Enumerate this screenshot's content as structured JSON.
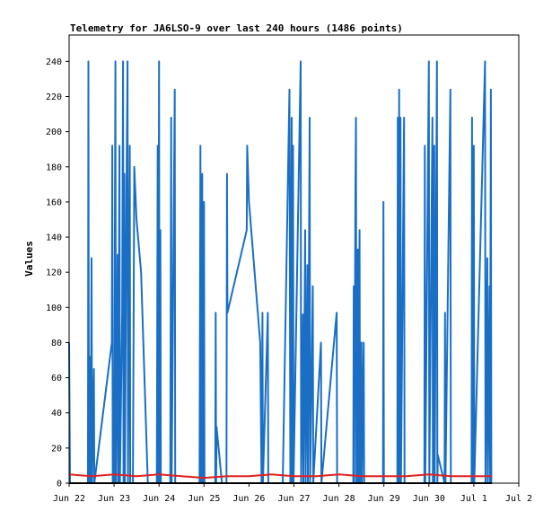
{
  "chart_data": {
    "type": "line",
    "title": "Telemetry for JA6LSO-9 over last 240 hours (1486 points)",
    "xlabel": "",
    "ylabel": "Values",
    "ylim": [
      0,
      255
    ],
    "yticks": [
      0,
      20,
      40,
      60,
      80,
      100,
      120,
      140,
      160,
      180,
      200,
      220,
      240
    ],
    "x_range_days": [
      0,
      10
    ],
    "x_tick_labels": [
      "Jun 22",
      "Jun 23",
      "Jun 24",
      "Jun 25",
      "Jun 26",
      "Jun 27",
      "Jun 28",
      "Jun 29",
      "Jun 30",
      "Jul 1",
      "Jul 2"
    ],
    "grid": false,
    "legend": "none",
    "series": [
      {
        "color": "#1a6fc4",
        "points": [
          [
            0.0,
            80
          ],
          [
            0.02,
            0
          ],
          [
            0.42,
            0
          ],
          [
            0.43,
            240
          ],
          [
            0.44,
            0
          ],
          [
            0.47,
            72
          ],
          [
            0.48,
            0
          ],
          [
            0.5,
            128
          ],
          [
            0.51,
            0
          ],
          [
            0.55,
            65
          ],
          [
            0.56,
            0
          ],
          [
            0.95,
            80
          ],
          [
            0.96,
            192
          ],
          [
            0.97,
            0
          ],
          [
            1.0,
            0
          ],
          [
            1.03,
            240
          ],
          [
            1.04,
            0
          ],
          [
            1.08,
            130
          ],
          [
            1.09,
            0
          ],
          [
            1.12,
            192
          ],
          [
            1.13,
            0
          ],
          [
            1.18,
            97
          ],
          [
            1.2,
            240
          ],
          [
            1.21,
            0
          ],
          [
            1.23,
            176
          ],
          [
            1.24,
            0
          ],
          [
            1.28,
            176
          ],
          [
            1.3,
            240
          ],
          [
            1.31,
            0
          ],
          [
            1.35,
            192
          ],
          [
            1.36,
            0
          ],
          [
            1.42,
            0
          ],
          [
            1.45,
            180
          ],
          [
            1.5,
            150
          ],
          [
            1.6,
            120
          ],
          [
            1.75,
            0
          ],
          [
            1.95,
            0
          ],
          [
            1.97,
            192
          ],
          [
            1.98,
            0
          ],
          [
            2.0,
            240
          ],
          [
            2.01,
            0
          ],
          [
            2.03,
            144
          ],
          [
            2.04,
            0
          ],
          [
            2.25,
            0
          ],
          [
            2.27,
            208
          ],
          [
            2.28,
            0
          ],
          [
            2.35,
            224
          ],
          [
            2.36,
            0
          ],
          [
            2.9,
            0
          ],
          [
            2.92,
            192
          ],
          [
            2.93,
            0
          ],
          [
            2.96,
            176
          ],
          [
            2.97,
            0
          ],
          [
            3.0,
            160
          ],
          [
            3.01,
            0
          ],
          [
            3.25,
            0
          ],
          [
            3.26,
            97
          ],
          [
            3.27,
            0
          ],
          [
            3.28,
            32
          ],
          [
            3.4,
            0
          ],
          [
            3.5,
            0
          ],
          [
            3.51,
            176
          ],
          [
            3.52,
            97
          ],
          [
            3.95,
            144
          ],
          [
            3.96,
            192
          ],
          [
            4.0,
            160
          ],
          [
            4.25,
            80
          ],
          [
            4.28,
            0
          ],
          [
            4.3,
            97
          ],
          [
            4.31,
            0
          ],
          [
            4.42,
            97
          ],
          [
            4.43,
            0
          ],
          [
            4.75,
            0
          ],
          [
            4.9,
            224
          ],
          [
            4.92,
            0
          ],
          [
            4.95,
            208
          ],
          [
            4.96,
            0
          ],
          [
            4.98,
            192
          ],
          [
            4.99,
            0
          ],
          [
            5.15,
            240
          ],
          [
            5.16,
            0
          ],
          [
            5.2,
            96
          ],
          [
            5.21,
            0
          ],
          [
            5.25,
            144
          ],
          [
            5.26,
            0
          ],
          [
            5.3,
            124
          ],
          [
            5.31,
            0
          ],
          [
            5.35,
            208
          ],
          [
            5.36,
            0
          ],
          [
            5.42,
            112
          ],
          [
            5.43,
            0
          ],
          [
            5.6,
            80
          ],
          [
            5.61,
            0
          ],
          [
            5.95,
            97
          ],
          [
            5.96,
            0
          ],
          [
            6.32,
            0
          ],
          [
            6.33,
            112
          ],
          [
            6.34,
            0
          ],
          [
            6.37,
            175
          ],
          [
            6.38,
            208
          ],
          [
            6.39,
            0
          ],
          [
            6.42,
            133
          ],
          [
            6.43,
            0
          ],
          [
            6.46,
            144
          ],
          [
            6.47,
            0
          ],
          [
            6.5,
            80
          ],
          [
            6.51,
            0
          ],
          [
            6.55,
            80
          ],
          [
            6.56,
            0
          ],
          [
            6.98,
            0
          ],
          [
            6.99,
            160
          ],
          [
            7.0,
            0
          ],
          [
            7.3,
            0
          ],
          [
            7.31,
            208
          ],
          [
            7.32,
            0
          ],
          [
            7.34,
            224
          ],
          [
            7.35,
            0
          ],
          [
            7.37,
            208
          ],
          [
            7.38,
            0
          ],
          [
            7.45,
            208
          ],
          [
            7.46,
            0
          ],
          [
            7.9,
            0
          ],
          [
            7.91,
            192
          ],
          [
            7.92,
            0
          ],
          [
            8.0,
            240
          ],
          [
            8.01,
            0
          ],
          [
            8.08,
            208
          ],
          [
            8.09,
            0
          ],
          [
            8.12,
            192
          ],
          [
            8.13,
            0
          ],
          [
            8.18,
            240
          ],
          [
            8.19,
            0
          ],
          [
            8.2,
            16
          ],
          [
            8.35,
            0
          ],
          [
            8.36,
            97
          ],
          [
            8.37,
            0
          ],
          [
            8.48,
            224
          ],
          [
            8.49,
            0
          ],
          [
            8.95,
            0
          ],
          [
            8.96,
            208
          ],
          [
            8.97,
            0
          ],
          [
            9.0,
            192
          ],
          [
            9.01,
            0
          ],
          [
            9.25,
            240
          ],
          [
            9.26,
            0
          ],
          [
            9.3,
            128
          ],
          [
            9.31,
            0
          ],
          [
            9.35,
            112
          ],
          [
            9.36,
            0
          ],
          [
            9.38,
            224
          ],
          [
            9.39,
            0
          ]
        ]
      },
      {
        "color": "#e02020",
        "points": [
          [
            0.0,
            5
          ],
          [
            0.5,
            4
          ],
          [
            1.0,
            5
          ],
          [
            1.5,
            4
          ],
          [
            2.0,
            5
          ],
          [
            2.5,
            4
          ],
          [
            3.0,
            3
          ],
          [
            3.5,
            4
          ],
          [
            4.0,
            4
          ],
          [
            4.5,
            5
          ],
          [
            5.0,
            4
          ],
          [
            5.5,
            4
          ],
          [
            6.0,
            5
          ],
          [
            6.5,
            4
          ],
          [
            7.0,
            4
          ],
          [
            7.5,
            4
          ],
          [
            8.0,
            5
          ],
          [
            8.5,
            4
          ],
          [
            9.0,
            4
          ],
          [
            9.4,
            4
          ]
        ]
      },
      {
        "color": "#000000",
        "points": [
          [
            0.0,
            0
          ],
          [
            9.4,
            0
          ]
        ]
      }
    ]
  }
}
